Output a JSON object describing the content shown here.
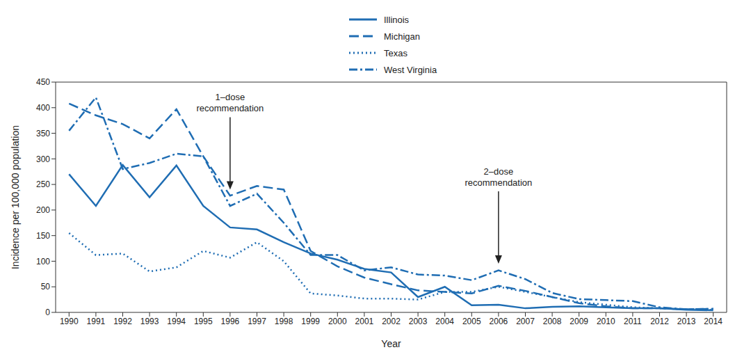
{
  "chart_data": {
    "type": "line",
    "xlabel": "Year",
    "ylabel": "Incidence per 100,000 population",
    "x": [
      1990,
      1991,
      1992,
      1993,
      1994,
      1995,
      1996,
      1997,
      1998,
      1999,
      2000,
      2001,
      2002,
      2003,
      2004,
      2005,
      2006,
      2007,
      2008,
      2009,
      2010,
      2011,
      2012,
      2013,
      2014
    ],
    "xlim": [
      1989.5,
      2014.5
    ],
    "xticks": [
      1990,
      1991,
      1992,
      1993,
      1994,
      1995,
      1996,
      1997,
      1998,
      1999,
      2000,
      2001,
      2002,
      2003,
      2004,
      2005,
      2006,
      2007,
      2008,
      2009,
      2010,
      2011,
      2012,
      2013,
      2014
    ],
    "ylim": [
      0,
      450
    ],
    "yticks": [
      0,
      50,
      100,
      150,
      200,
      250,
      300,
      350,
      400,
      450
    ],
    "grid": false,
    "legend": "top",
    "series": [
      {
        "name": "Illinois",
        "color": "#1f6db3",
        "line_style": "solid",
        "values": [
          270,
          208,
          288,
          225,
          287,
          208,
          166,
          162,
          137,
          115,
          103,
          85,
          78,
          30,
          50,
          14,
          15,
          8,
          11,
          12,
          10,
          8,
          8,
          5,
          4
        ]
      },
      {
        "name": "Michigan",
        "color": "#1f6db3",
        "line_style": "dashed",
        "values": [
          408,
          385,
          368,
          340,
          397,
          305,
          228,
          247,
          240,
          120,
          90,
          68,
          55,
          43,
          40,
          37,
          52,
          42,
          30,
          18,
          12,
          8,
          8,
          6,
          7
        ]
      },
      {
        "name": "Texas",
        "color": "#1f6db3",
        "line_style": "dotted",
        "values": [
          155,
          112,
          115,
          80,
          88,
          120,
          107,
          137,
          100,
          37,
          33,
          27,
          27,
          25,
          40,
          40,
          50,
          40,
          30,
          20,
          15,
          10,
          8,
          6,
          5
        ]
      },
      {
        "name": "West Virginia",
        "color": "#1f6db3",
        "line_style": "dashdot",
        "values": [
          355,
          420,
          280,
          292,
          310,
          305,
          208,
          232,
          175,
          112,
          112,
          82,
          88,
          74,
          72,
          63,
          82,
          65,
          38,
          26,
          24,
          22,
          10,
          6,
          7
        ]
      }
    ],
    "annotations": [
      {
        "text": "1–dose recommendation",
        "x": 1996,
        "y": 240
      },
      {
        "text": "2–dose recommendation",
        "x": 2006,
        "y": 95
      }
    ]
  }
}
